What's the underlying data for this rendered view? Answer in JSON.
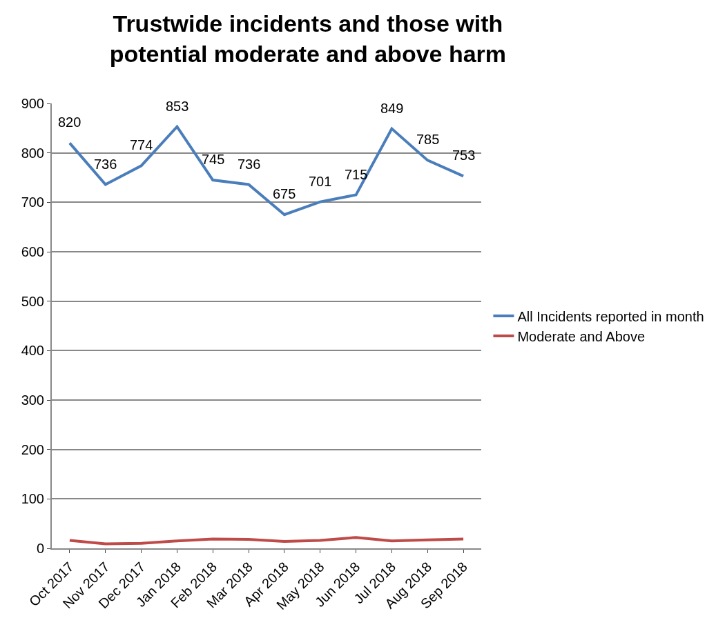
{
  "chart_data": {
    "type": "line",
    "title": "Trustwide incidents and those with potential moderate and above harm",
    "categories": [
      "Oct 2017",
      "Nov 2017",
      "Dec 2017",
      "Jan 2018",
      "Feb 2018",
      "Mar 2018",
      "Apr 2018",
      "May 2018",
      "Jun 2018",
      "Jul 2018",
      "Aug 2018",
      "Sep 2018"
    ],
    "series": [
      {
        "name": "All Incidents reported in month",
        "color": "#4a7ebb",
        "values": [
          820,
          736,
          774,
          853,
          745,
          736,
          675,
          701,
          715,
          849,
          785,
          753
        ],
        "data_labels": true
      },
      {
        "name": "Moderate and Above",
        "color": "#be4b48",
        "values": [
          16,
          9,
          10,
          15,
          19,
          18,
          14,
          16,
          22,
          15,
          17,
          19
        ]
      }
    ],
    "ylim": [
      0,
      900
    ],
    "yticks": [
      0,
      100,
      200,
      300,
      400,
      500,
      600,
      700,
      800,
      900
    ],
    "grid": "y",
    "legend": "right",
    "marker": "none",
    "line_style": "solid"
  }
}
